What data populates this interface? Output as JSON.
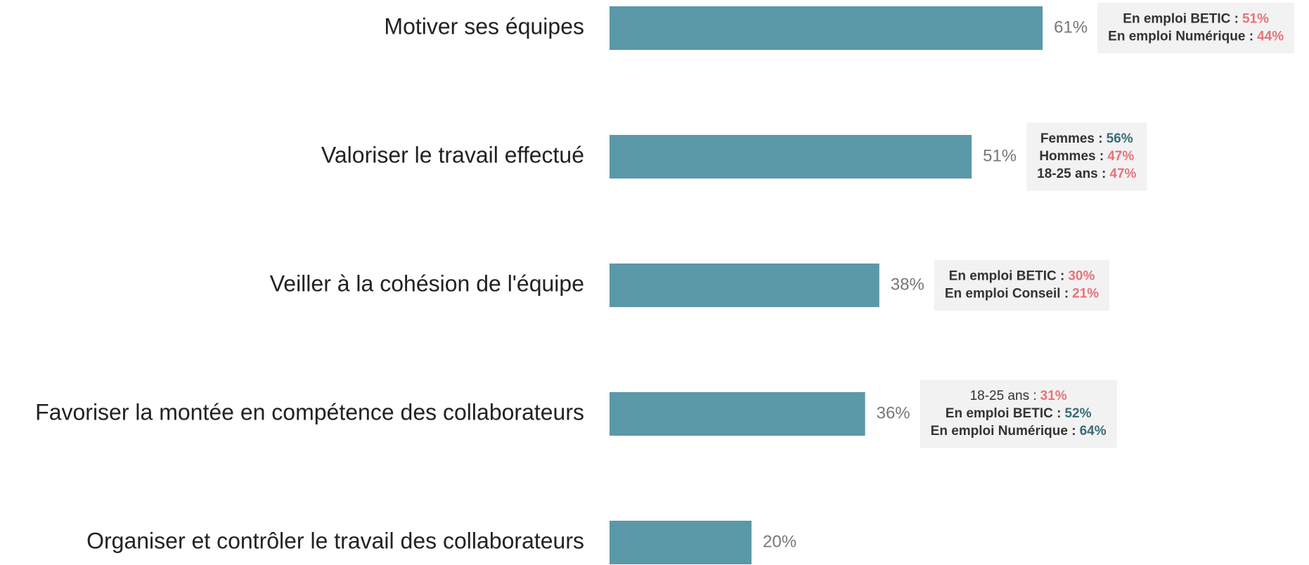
{
  "chart_data": {
    "type": "bar",
    "orientation": "horizontal",
    "color": "#5b98a8",
    "categories": [
      "Motiver ses équipes",
      "Valoriser le travail effectué",
      "Veiller à la cohésion de l'équipe",
      "Favoriser la montée en compétence des collaborateurs",
      "Organiser et contrôler le travail des collaborateurs"
    ],
    "values": [
      61,
      51,
      38,
      36,
      20
    ],
    "value_labels": [
      "61%",
      "51%",
      "38%",
      "36%",
      "20%"
    ],
    "annotations": [
      {
        "lines": [
          {
            "label": "En emploi BETIC :",
            "value": "51%",
            "color": "#e8737a",
            "bold": true
          },
          {
            "label": "En emploi Numérique :",
            "value": "44%",
            "color": "#e8737a",
            "bold": true
          }
        ]
      },
      {
        "lines": [
          {
            "label": "Femmes :",
            "value": "56%",
            "color": "#3a6b78",
            "bold": true
          },
          {
            "label": "Hommes :",
            "value": "47%",
            "color": "#e8737a",
            "bold": true
          },
          {
            "label": "18-25 ans :",
            "value": "47%",
            "color": "#e8737a",
            "bold": true
          }
        ]
      },
      {
        "lines": [
          {
            "label": "En emploi BETIC :",
            "value": "30%",
            "color": "#e8737a",
            "bold": true
          },
          {
            "label": "En emploi Conseil :",
            "value": "21%",
            "color": "#e8737a",
            "bold": true
          }
        ]
      },
      {
        "lines": [
          {
            "label": "18-25 ans :",
            "value": "31%",
            "color": "#e8737a",
            "bold": false
          },
          {
            "label": "En emploi BETIC :",
            "value": "52%",
            "color": "#3a6b78",
            "bold": true
          },
          {
            "label": "En emploi Numérique :",
            "value": "64%",
            "color": "#3a6b78",
            "bold": true
          }
        ]
      }
    ]
  }
}
